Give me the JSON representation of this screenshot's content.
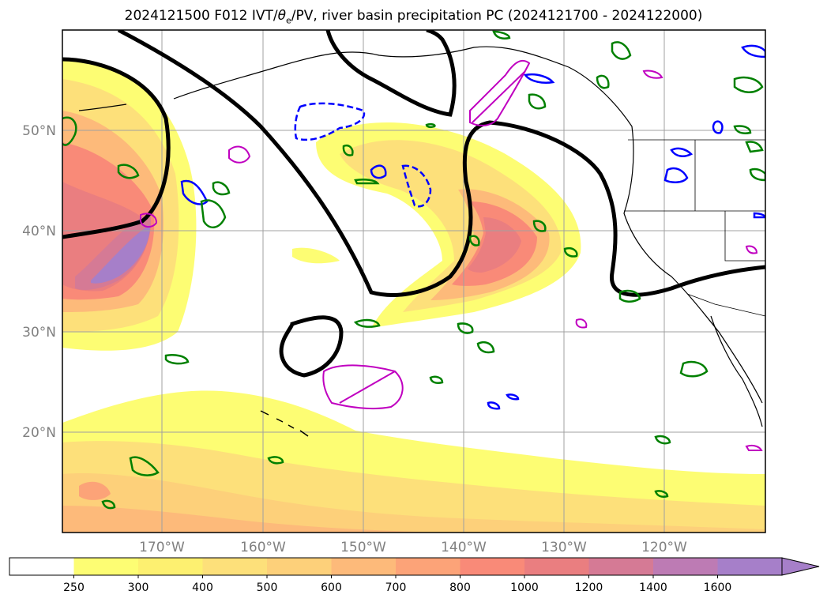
{
  "title": {
    "prefix": "2024121500 F012 IVT/",
    "theta": "θ",
    "theta_sub": "e",
    "suffix": "/PV, river basin precipitation PC (2024121700 - 2024122000)"
  },
  "latitude_labels": [
    "50°N",
    "40°N",
    "30°N",
    "20°N"
  ],
  "longitude_labels": [
    "170°W",
    "160°W",
    "150°W",
    "140°W",
    "130°W",
    "120°W"
  ],
  "colorbar": {
    "levels": [
      "250",
      "300",
      "400",
      "500",
      "600",
      "700",
      "800",
      "1000",
      "1200",
      "1400",
      "1600"
    ],
    "colors": [
      "#ffffff",
      "#fdfd73",
      "#fdf070",
      "#fde07a",
      "#fdd07a",
      "#fdba7a",
      "#fca378",
      "#f98a78",
      "#ea7e80",
      "#d57a95",
      "#bd7bb4",
      "#a67fc9"
    ],
    "extend": "max"
  },
  "colors": {
    "ivt_theta_contour": "#000000",
    "pv_positive": "#0000ff",
    "pv_magenta": "#c000c0",
    "precip_green": "#008000",
    "coastline": "#000000",
    "grid": "#a0a0a0"
  }
}
